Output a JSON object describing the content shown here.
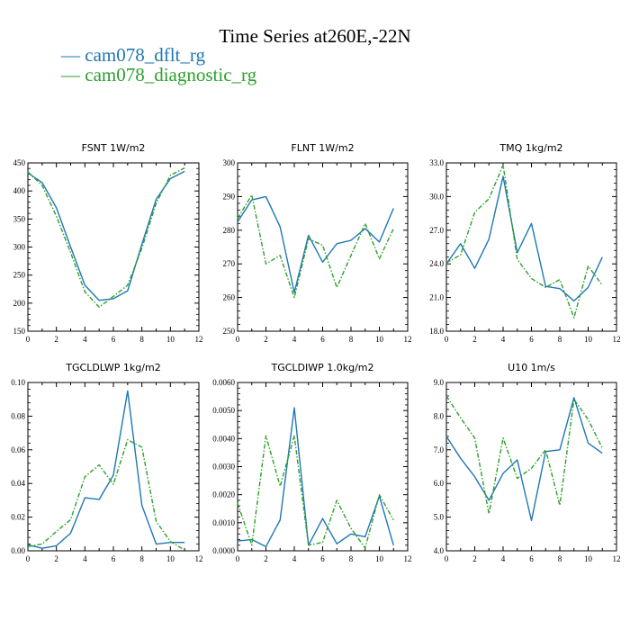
{
  "figure": {
    "title": "Time Series at260E,-22N",
    "legend": [
      {
        "label": "— cam078_dflt_rg",
        "color": "#1f77b4"
      },
      {
        "label": "— cam078_diagnostic_rg",
        "color": "#2ca02c"
      }
    ]
  },
  "chart_data": [
    {
      "type": "line",
      "title": "FSNT   1W/m2",
      "xlim": [
        0,
        12
      ],
      "ylim": [
        150,
        450
      ],
      "xticks": [
        "0",
        "2",
        "4",
        "6",
        "8",
        "10",
        "12"
      ],
      "yticks": [
        "150",
        "200",
        "250",
        "300",
        "350",
        "400",
        "450"
      ],
      "x": [
        0,
        1,
        2,
        3,
        4,
        5,
        6,
        7,
        8,
        9,
        10,
        11
      ],
      "series": [
        {
          "name": "cam078_dflt_rg",
          "color": "#1f77b4",
          "dash": "solid",
          "values": [
            432,
            415,
            370,
            300,
            232,
            205,
            208,
            222,
            305,
            385,
            422,
            435
          ]
        },
        {
          "name": "cam078_diagnostic_rg",
          "color": "#2ca02c",
          "dash": "dashed",
          "values": [
            434,
            410,
            355,
            290,
            220,
            193,
            212,
            232,
            298,
            378,
            428,
            441
          ]
        }
      ]
    },
    {
      "type": "line",
      "title": "FLNT   1W/m2",
      "xlim": [
        0,
        12
      ],
      "ylim": [
        250,
        300
      ],
      "xticks": [
        "0",
        "2",
        "4",
        "6",
        "8",
        "10",
        "12"
      ],
      "yticks": [
        "250",
        "260",
        "270",
        "280",
        "290",
        "300"
      ],
      "x": [
        0,
        1,
        2,
        3,
        4,
        5,
        6,
        7,
        8,
        9,
        10,
        11
      ],
      "series": [
        {
          "name": "cam078_dflt_rg",
          "color": "#1f77b4",
          "dash": "solid",
          "values": [
            282.5,
            289,
            290,
            281,
            261.5,
            278.5,
            270.5,
            276,
            277,
            280.5,
            276.5,
            286.5
          ]
        },
        {
          "name": "cam078_diagnostic_rg",
          "color": "#2ca02c",
          "dash": "dashed",
          "values": [
            283.5,
            290.5,
            270,
            272.5,
            260,
            277.5,
            275.5,
            263,
            272.5,
            282,
            271.5,
            280.5
          ]
        }
      ]
    },
    {
      "type": "line",
      "title": "TMQ   1kg/m2",
      "xlim": [
        0,
        12
      ],
      "ylim": [
        18,
        33
      ],
      "xticks": [
        "0",
        "2",
        "4",
        "6",
        "8",
        "10",
        "12"
      ],
      "yticks": [
        "18.0",
        "21.0",
        "24.0",
        "27.0",
        "30.0",
        "33.0"
      ],
      "x": [
        0,
        1,
        2,
        3,
        4,
        5,
        6,
        7,
        8,
        9,
        10,
        11
      ],
      "series": [
        {
          "name": "cam078_dflt_rg",
          "color": "#1f77b4",
          "dash": "solid",
          "values": [
            24.0,
            25.8,
            23.6,
            26.2,
            31.8,
            25.0,
            27.6,
            22.0,
            21.8,
            20.7,
            21.9,
            24.6
          ]
        },
        {
          "name": "cam078_diagnostic_rg",
          "color": "#2ca02c",
          "dash": "dashed",
          "values": [
            24.1,
            24.8,
            28.6,
            29.8,
            32.8,
            24.4,
            22.7,
            21.9,
            22.6,
            19.2,
            23.8,
            22.1
          ]
        }
      ]
    },
    {
      "type": "line",
      "title": "TGCLDLWP   1kg/m2",
      "xlim": [
        0,
        12
      ],
      "ylim": [
        0,
        0.1
      ],
      "xticks": [
        "0",
        "2",
        "4",
        "6",
        "8",
        "10",
        "12"
      ],
      "yticks": [
        "0.00",
        "0.02",
        "0.04",
        "0.06",
        "0.08",
        "0.10"
      ],
      "x": [
        0,
        1,
        2,
        3,
        4,
        5,
        6,
        7,
        8,
        9,
        10,
        11
      ],
      "series": [
        {
          "name": "cam078_dflt_rg",
          "color": "#1f77b4",
          "dash": "solid",
          "values": [
            0.0035,
            0.0015,
            0.003,
            0.0105,
            0.0315,
            0.0305,
            0.045,
            0.095,
            0.027,
            0.004,
            0.005,
            0.005
          ]
        },
        {
          "name": "cam078_diagnostic_rg",
          "color": "#2ca02c",
          "dash": "dashed",
          "values": [
            0.0025,
            0.004,
            0.0115,
            0.0185,
            0.044,
            0.051,
            0.0395,
            0.066,
            0.0615,
            0.0175,
            0.0055,
            0.0005
          ]
        }
      ]
    },
    {
      "type": "line",
      "title": "TGCLDIWP   1.0kg/m2",
      "xlim": [
        0,
        12
      ],
      "ylim": [
        0,
        0.006
      ],
      "xticks": [
        "0",
        "2",
        "4",
        "6",
        "8",
        "10",
        "12"
      ],
      "yticks": [
        "0.0000",
        "0.0010",
        "0.0020",
        "0.0030",
        "0.0040",
        "0.0050",
        "0.0060"
      ],
      "x": [
        0,
        1,
        2,
        3,
        4,
        5,
        6,
        7,
        8,
        9,
        10,
        11
      ],
      "series": [
        {
          "name": "cam078_dflt_rg",
          "color": "#1f77b4",
          "dash": "solid",
          "values": [
            0.00035,
            0.0004,
            0.00015,
            0.0011,
            0.0051,
            0.0002,
            0.00115,
            0.00025,
            0.0006,
            0.0005,
            0.00195,
            0.0002
          ]
        },
        {
          "name": "cam078_diagnostic_rg",
          "color": "#2ca02c",
          "dash": "dashed",
          "values": [
            0.0017,
            0.0002,
            0.0041,
            0.0023,
            0.0041,
            0.0002,
            0.0003,
            0.0018,
            0.0008,
            0.0001,
            0.002,
            0.0011
          ]
        }
      ]
    },
    {
      "type": "line",
      "title": "U10   1m/s",
      "xlim": [
        0,
        12
      ],
      "ylim": [
        4,
        9
      ],
      "xticks": [
        "0",
        "2",
        "4",
        "6",
        "8",
        "10",
        "12"
      ],
      "yticks": [
        "4.0",
        "5.0",
        "6.0",
        "7.0",
        "8.0",
        "9.0"
      ],
      "x": [
        0,
        1,
        2,
        3,
        4,
        5,
        6,
        7,
        8,
        9,
        10,
        11
      ],
      "series": [
        {
          "name": "cam078_dflt_rg",
          "color": "#1f77b4",
          "dash": "solid",
          "values": [
            7.4,
            6.75,
            6.2,
            5.5,
            6.3,
            6.7,
            4.9,
            6.95,
            7.0,
            8.55,
            7.2,
            6.9
          ]
        },
        {
          "name": "cam078_diagnostic_rg",
          "color": "#2ca02c",
          "dash": "dashed",
          "values": [
            8.6,
            7.95,
            7.35,
            5.1,
            7.35,
            6.15,
            6.45,
            7.0,
            5.35,
            8.5,
            7.9,
            7.05
          ]
        }
      ]
    }
  ]
}
